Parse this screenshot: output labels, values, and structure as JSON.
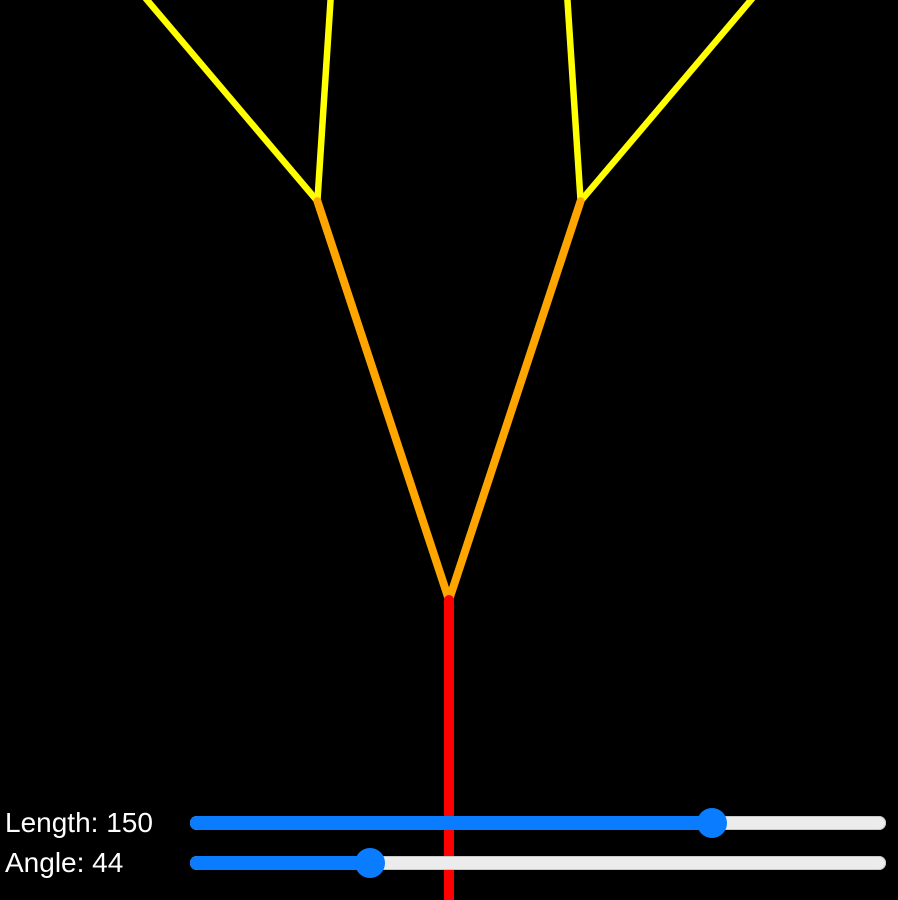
{
  "controls": {
    "length": {
      "label": "Length: 150",
      "value": 150,
      "min": 0,
      "max": 200
    },
    "angle": {
      "label": "Angle: 44",
      "value": 44,
      "min": 0,
      "max": 170
    }
  },
  "tree": {
    "branch_colors": [
      "#ff0000",
      "#ffa500",
      "#ffff00",
      "#008000",
      "#0000ff",
      "#4b0082",
      "#ee82ee",
      "#00e5ee",
      "#ff0000",
      "#ffd700",
      "#ffff33"
    ]
  }
}
